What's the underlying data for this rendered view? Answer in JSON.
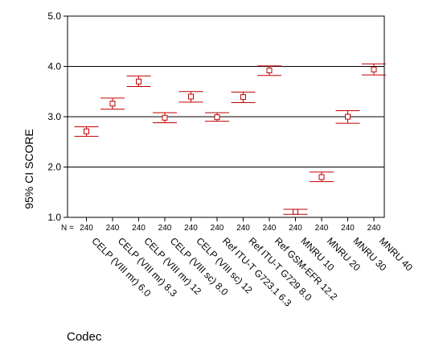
{
  "chart_data": {
    "type": "scatter",
    "title": "",
    "xlabel": "Codec",
    "ylabel": "95% CI SCORE",
    "ylim": [
      1.0,
      5.0
    ],
    "y_ticks": [
      "1.0",
      "2.0",
      "3.0",
      "4.0",
      "5.0"
    ],
    "grid": {
      "horizontal_at": [
        2.0,
        3.0,
        4.0
      ]
    },
    "n_prefix": "N =",
    "categories": [
      "CELP (VIII mr) 6.0",
      "CELP (VIII mr) 8.3",
      "CELP (VIII mr) 12",
      "CELP (VIII sc) 8.0",
      "CELP (VIII sc) 12",
      "Ref ITU-T G723.1 6.3",
      "Ref ITU-T G729 8.0",
      "Ref GSM-EFR 12.2",
      "MNRU 10",
      "MNRU 20",
      "MNRU 30",
      "MNRU 40"
    ],
    "n": [
      "240",
      "240",
      "240",
      "240",
      "240",
      "240",
      "240",
      "240",
      "240",
      "240",
      "240",
      "240"
    ],
    "series": [
      {
        "mean": [
          2.71,
          3.26,
          3.7,
          2.98,
          3.4,
          2.99,
          3.39,
          3.92,
          1.11,
          1.8,
          3.0,
          3.94
        ],
        "lower": [
          2.61,
          3.15,
          3.6,
          2.88,
          3.29,
          2.91,
          3.28,
          3.82,
          1.06,
          1.71,
          2.87,
          3.83
        ],
        "upper": [
          2.8,
          3.37,
          3.81,
          3.08,
          3.5,
          3.08,
          3.49,
          4.01,
          1.16,
          1.9,
          3.12,
          4.05
        ]
      }
    ],
    "colors": {
      "errorbar": "#c00000",
      "grid": "#000000",
      "axis": "#000000"
    }
  }
}
